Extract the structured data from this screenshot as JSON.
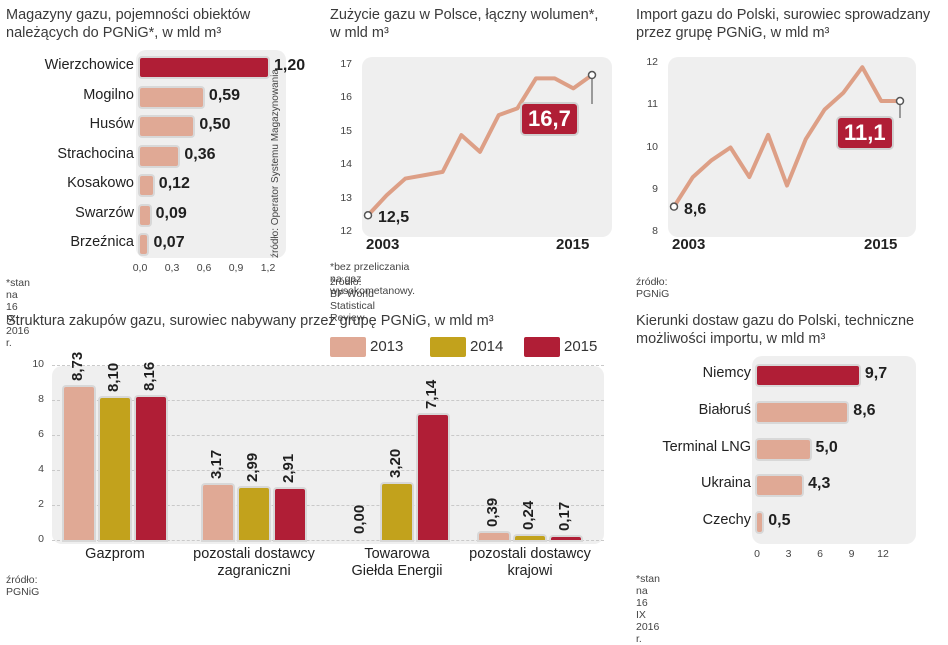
{
  "colors": {
    "c2013": "#e0a995",
    "c2014": "#c2a21c",
    "c2015": "#b01e36",
    "line": "#dd9f86"
  },
  "chart_data": [
    {
      "type": "bar",
      "orientation": "horizontal",
      "title": "Magazyny gazu, pojemności obiektów należących do PGNiG*, w mld m³",
      "categories": [
        "Wierzchowice",
        "Mogilno",
        "Husów",
        "Strachocina",
        "Kosakowo",
        "Swarzów",
        "Brzeźnica"
      ],
      "values": [
        1.2,
        0.59,
        0.5,
        0.36,
        0.12,
        0.09,
        0.07
      ],
      "value_labels": [
        "1,20",
        "0,59",
        "0,50",
        "0,36",
        "0,12",
        "0,09",
        "0,07"
      ],
      "xticks": [
        "0,0",
        "0,3",
        "0,6",
        "0,9",
        "1,2"
      ],
      "xlim": [
        0,
        1.2
      ],
      "source": "źródło: Operator Systemu Magazynowania",
      "footnote": "*stan na 16 IX 2016 r."
    },
    {
      "type": "line",
      "title": "Zużycie gazu w Polsce, łączny wolumen*, w mld m³",
      "x": [
        2003,
        2004,
        2005,
        2006,
        2007,
        2008,
        2009,
        2010,
        2011,
        2012,
        2013,
        2014,
        2015
      ],
      "y": [
        12.5,
        13.1,
        13.6,
        13.7,
        13.8,
        14.9,
        14.4,
        15.5,
        15.7,
        16.6,
        16.6,
        16.3,
        16.7
      ],
      "yticks": [
        "12",
        "13",
        "14",
        "15",
        "16",
        "17"
      ],
      "ylim": [
        12,
        17
      ],
      "start_year": "2003",
      "end_year": "2015",
      "start_label": "12,5",
      "end_label": "16,7",
      "footnote": "*bez przeliczania na gaz wysokometanowy.",
      "source": "źródło: BP World Statistical Review"
    },
    {
      "type": "line",
      "title": "Import gazu do Polski, surowiec sprowadzany przez grupę PGNiG, w mld m³",
      "x": [
        2003,
        2004,
        2005,
        2006,
        2007,
        2008,
        2009,
        2010,
        2011,
        2012,
        2013,
        2014,
        2015
      ],
      "y": [
        8.6,
        9.3,
        9.7,
        10.0,
        9.3,
        10.3,
        9.1,
        10.2,
        10.9,
        11.3,
        11.9,
        11.1,
        11.1
      ],
      "yticks": [
        "8",
        "9",
        "10",
        "11",
        "12"
      ],
      "ylim": [
        8,
        12
      ],
      "start_year": "2003",
      "end_year": "2015",
      "start_label": "8,6",
      "end_label": "11,1",
      "source": "źródło: PGNiG"
    },
    {
      "type": "bar",
      "orientation": "vertical",
      "title": "Struktura zakupów gazu, surowiec nabywany przez grupę PGNiG, w mld m³",
      "categories": [
        "Gazprom",
        "pozostali dostawcy zagraniczni",
        "Towarowa Giełda Energii",
        "pozostali dostawcy krajowi"
      ],
      "category_lines": [
        [
          "Gazprom"
        ],
        [
          "pozostali dostawcy",
          "zagraniczni"
        ],
        [
          "Towarowa",
          "Giełda Energii"
        ],
        [
          "pozostali dostawcy",
          "krajowi"
        ]
      ],
      "series": [
        {
          "name": "2013",
          "values": [
            8.73,
            3.17,
            0.0,
            0.39
          ],
          "labels": [
            "8,73",
            "3,17",
            "0,00",
            "0,39"
          ]
        },
        {
          "name": "2014",
          "values": [
            8.1,
            2.99,
            3.2,
            0.24
          ],
          "labels": [
            "8,10",
            "2,99",
            "3,20",
            "0,24"
          ]
        },
        {
          "name": "2015",
          "values": [
            8.16,
            2.91,
            7.14,
            0.17
          ],
          "labels": [
            "8,16",
            "2,91",
            "7,14",
            "0,17"
          ]
        }
      ],
      "yticks": [
        "0",
        "2",
        "4",
        "6",
        "8",
        "10"
      ],
      "ylim": [
        0,
        10
      ],
      "source": "źródło: PGNiG"
    },
    {
      "type": "bar",
      "orientation": "horizontal",
      "title": "Kierunki dostaw gazu do Polski, techniczne możliwości importu, w mld m³",
      "categories": [
        "Niemcy",
        "Białoruś",
        "Terminal LNG",
        "Ukraina",
        "Czechy"
      ],
      "values": [
        9.7,
        8.6,
        5.0,
        4.3,
        0.5
      ],
      "value_labels": [
        "9,7",
        "8,6",
        "5,0",
        "4,3",
        "0,5"
      ],
      "xticks": [
        "0",
        "3",
        "6",
        "9",
        "12"
      ],
      "xlim": [
        0,
        12
      ],
      "footnote": "*stan na 16 IX 2016 r."
    }
  ]
}
